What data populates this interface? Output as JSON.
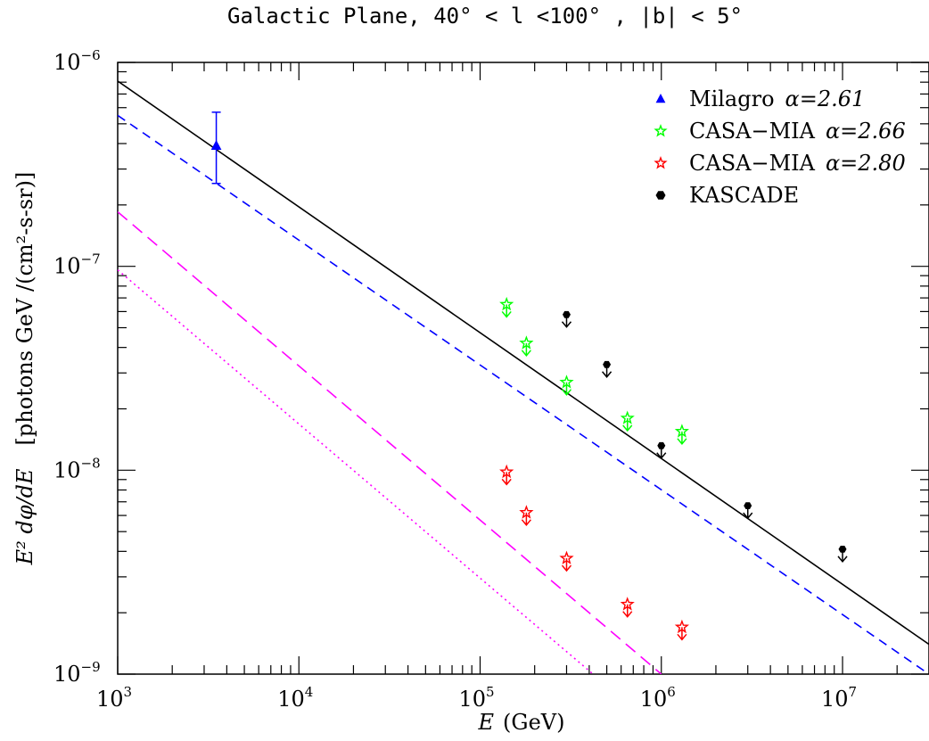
{
  "chart_data": {
    "type": "scatter",
    "title": "Galactic Plane, 40° < l <100° , |b| < 5°",
    "xlabel": "E",
    "xlabel_unit": "(GeV)",
    "ylabel_formula": "E² dφ/dE",
    "ylabel_unit": "[photons GeV /(cm²-s-sr)]",
    "xscale": "log",
    "yscale": "log",
    "xlim": [
      1000,
      30000000
    ],
    "ylim": [
      1e-09,
      1e-06
    ],
    "x_tick_labels": [
      {
        "value": 1000,
        "base": "10",
        "exp": "3"
      },
      {
        "value": 10000,
        "base": "10",
        "exp": "4"
      },
      {
        "value": 100000,
        "base": "10",
        "exp": "5"
      },
      {
        "value": 1000000,
        "base": "10",
        "exp": "6"
      },
      {
        "value": 10000000,
        "base": "10",
        "exp": "7"
      }
    ],
    "y_tick_labels": [
      {
        "value": 1e-06,
        "base": "10",
        "exp": "−6"
      },
      {
        "value": 1e-07,
        "base": "10",
        "exp": "−7"
      },
      {
        "value": 1e-08,
        "base": "10",
        "exp": "−8"
      },
      {
        "value": 1e-09,
        "base": "10",
        "exp": "−9"
      }
    ],
    "legend_position": "top-right",
    "legend": [
      {
        "label": "Milagro",
        "alpha_label": "α=2.61",
        "marker": "triangle",
        "color": "#0000ff"
      },
      {
        "label": "CASA−MIA",
        "alpha_label": "α=2.66",
        "marker": "star",
        "color": "#00ff00"
      },
      {
        "label": "CASA−MIA",
        "alpha_label": "α=2.80",
        "marker": "star",
        "color": "#ff0000"
      },
      {
        "label": "KASCADE",
        "alpha_label": "",
        "marker": "hexagon",
        "color": "#000000"
      }
    ],
    "series": [
      {
        "name": "Milagro α=2.61",
        "marker": "triangle",
        "color": "#0000ff",
        "points": [
          {
            "x": 3500,
            "y": 3.9e-07,
            "ylow": 2.55e-07,
            "yhigh": 5.7e-07
          }
        ]
      },
      {
        "name": "CASA−MIA α=2.66",
        "marker": "star",
        "color": "#00ff00",
        "upper_limit": true,
        "points": [
          {
            "x": 140000,
            "y": 6.5e-08
          },
          {
            "x": 180000,
            "y": 4.2e-08
          },
          {
            "x": 300000,
            "y": 2.7e-08
          },
          {
            "x": 650000,
            "y": 1.8e-08
          },
          {
            "x": 1300000,
            "y": 1.55e-08
          }
        ]
      },
      {
        "name": "CASA−MIA α=2.80",
        "marker": "star",
        "color": "#ff0000",
        "upper_limit": true,
        "points": [
          {
            "x": 140000,
            "y": 9.8e-09
          },
          {
            "x": 180000,
            "y": 6.2e-09
          },
          {
            "x": 300000,
            "y": 3.7e-09
          },
          {
            "x": 650000,
            "y": 2.2e-09
          },
          {
            "x": 1300000,
            "y": 1.7e-09
          }
        ]
      },
      {
        "name": "KASCADE",
        "marker": "hexagon",
        "color": "#000000",
        "upper_limit": true,
        "points": [
          {
            "x": 300000,
            "y": 5.8e-08
          },
          {
            "x": 500000,
            "y": 3.3e-08
          },
          {
            "x": 1000000,
            "y": 1.32e-08
          },
          {
            "x": 3000000,
            "y": 6.7e-09
          },
          {
            "x": 10000000,
            "y": 4.1e-09
          }
        ]
      }
    ],
    "lines": [
      {
        "style": "solid",
        "color": "#000000",
        "from": {
          "x": 1000,
          "y": 8.1e-07
        },
        "to": {
          "x": 30000000,
          "y": 1.4e-09
        }
      },
      {
        "style": "dashed",
        "color": "#0000ff",
        "from": {
          "x": 1000,
          "y": 5.5e-07
        },
        "to": {
          "x": 30000000,
          "y": 1e-09
        }
      },
      {
        "style": "dashed-long",
        "color": "#ff00ff",
        "from": {
          "x": 1000,
          "y": 1.85e-07
        },
        "to": {
          "x": 1000000,
          "y": 1e-09
        }
      },
      {
        "style": "dotted",
        "color": "#ff00ff",
        "from": {
          "x": 1000,
          "y": 9.6e-08
        },
        "to": {
          "x": 420000,
          "y": 1e-09
        }
      }
    ]
  }
}
